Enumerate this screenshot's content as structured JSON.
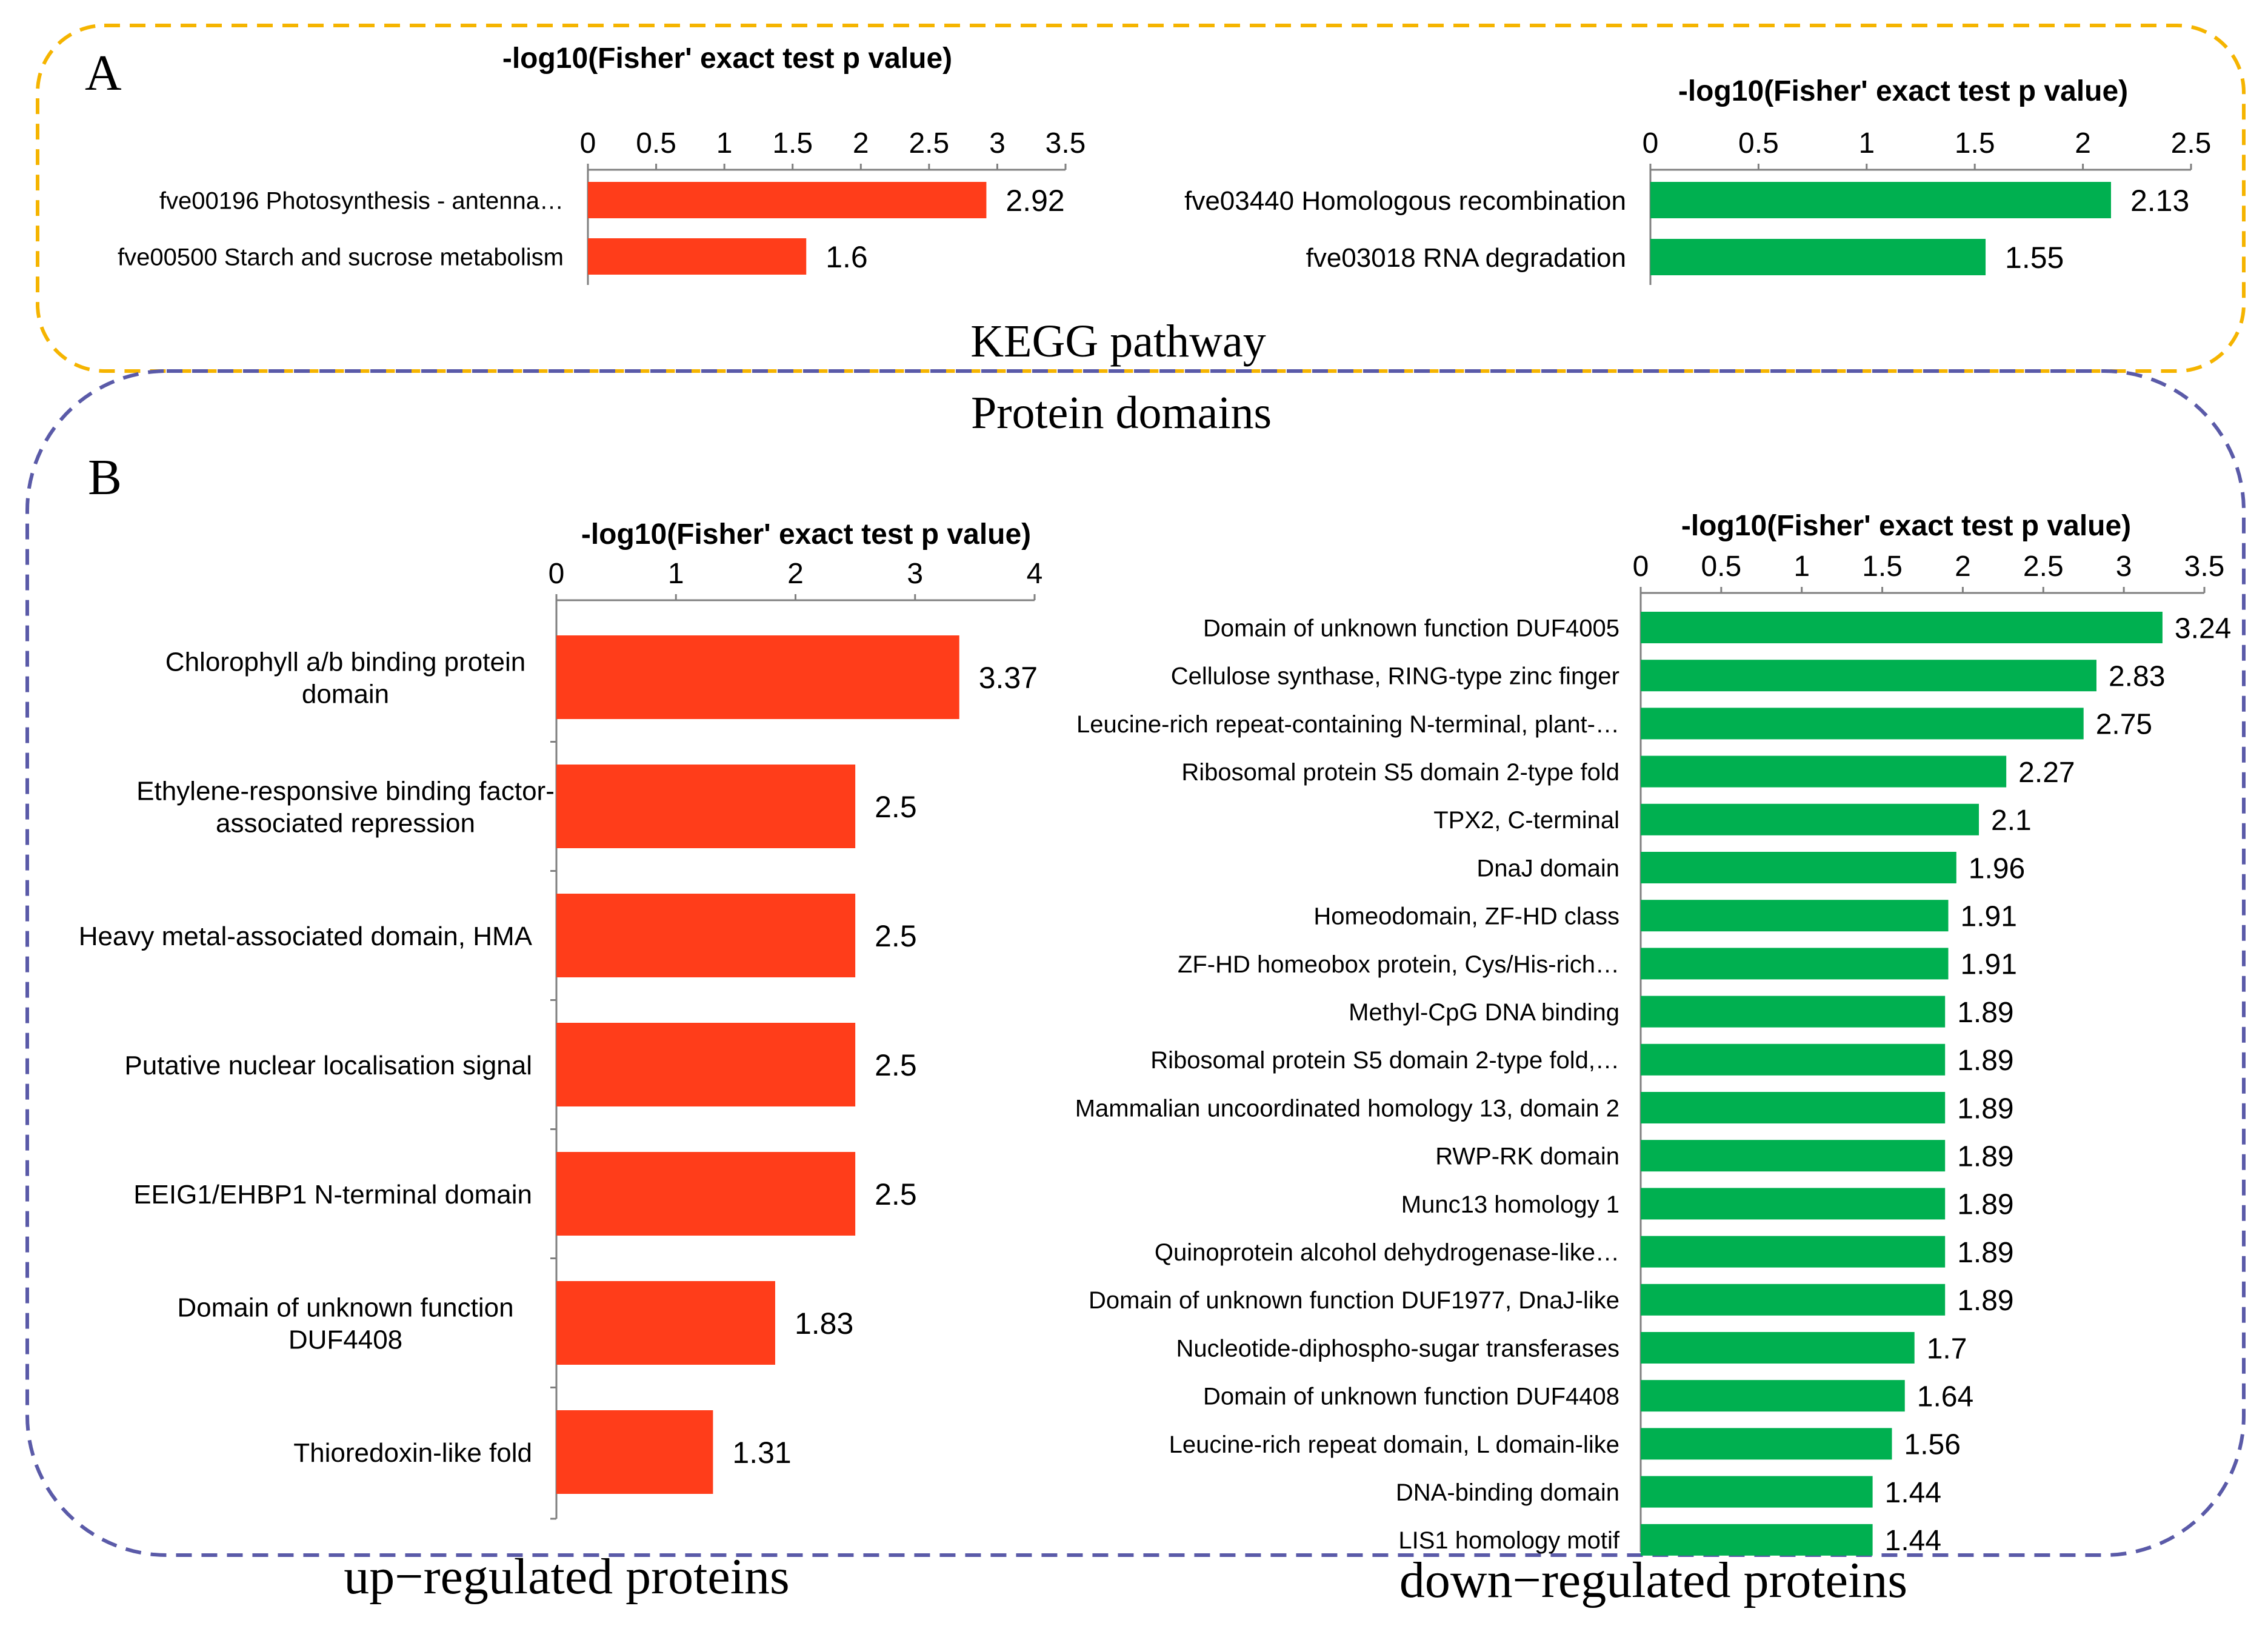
{
  "colors": {
    "up_bar": "#ff3d1a",
    "down_bar": "#00b050",
    "panel_a_border": "#f5b400",
    "panel_b_border": "#5a5aa8",
    "axis": "#7f7f7f",
    "text": "#000000"
  },
  "labels": {
    "panel_a": "A",
    "panel_b": "B",
    "kegg_title": "KEGG pathway",
    "domains_title": "Protein domains",
    "up_caption": "up−regulated proteins",
    "down_caption": "down−regulated proteins"
  },
  "chart_data": [
    {
      "id": "kegg_up",
      "type": "bar",
      "orientation": "horizontal",
      "title": "-log10(Fisher' exact test p value)",
      "categories": [
        "fve00196 Photosynthesis - antenna…",
        "fve00500 Starch and sucrose metabolism"
      ],
      "values": [
        2.92,
        1.6
      ],
      "value_labels": [
        "2.92",
        "1.6"
      ],
      "xlim": [
        0,
        3.5
      ],
      "ticks": [
        "0",
        "0.5",
        "1",
        "1.5",
        "2",
        "2.5",
        "3",
        "3.5"
      ],
      "color": "#ff3d1a"
    },
    {
      "id": "kegg_down",
      "type": "bar",
      "orientation": "horizontal",
      "title": "-log10(Fisher' exact test p value)",
      "categories": [
        "fve03440 Homologous recombination",
        "fve03018 RNA degradation"
      ],
      "values": [
        2.13,
        1.55
      ],
      "value_labels": [
        "2.13",
        "1.55"
      ],
      "xlim": [
        0,
        2.5
      ],
      "ticks": [
        "0",
        "0.5",
        "1",
        "1.5",
        "2",
        "2.5"
      ],
      "color": "#00b050"
    },
    {
      "id": "domain_up",
      "type": "bar",
      "orientation": "horizontal",
      "title": "-log10(Fisher' exact test p value)",
      "categories": [
        [
          "Chlorophyll a/b binding protein",
          "domain"
        ],
        [
          "Ethylene-responsive binding factor-",
          "associated repression"
        ],
        [
          "Heavy metal-associated domain, HMA"
        ],
        [
          "Putative nuclear localisation signal"
        ],
        [
          "EEIG1/EHBP1 N-terminal domain"
        ],
        [
          "Domain of unknown function",
          "DUF4408"
        ],
        [
          "Thioredoxin-like fold"
        ]
      ],
      "values": [
        3.37,
        2.5,
        2.5,
        2.5,
        2.5,
        1.83,
        1.31
      ],
      "value_labels": [
        "3.37",
        "2.5",
        "2.5",
        "2.5",
        "2.5",
        "1.83",
        "1.31"
      ],
      "xlim": [
        0,
        4
      ],
      "ticks": [
        "0",
        "1",
        "2",
        "3",
        "4"
      ],
      "color": "#ff3d1a"
    },
    {
      "id": "domain_down",
      "type": "bar",
      "orientation": "horizontal",
      "title": "-log10(Fisher' exact test p value)",
      "categories": [
        "Domain of unknown function DUF4005",
        "Cellulose synthase, RING-type zinc finger",
        "Leucine-rich repeat-containing N-terminal, plant-…",
        "Ribosomal protein S5 domain 2-type fold",
        "TPX2, C-terminal",
        "DnaJ domain",
        "Homeodomain, ZF-HD class",
        "ZF-HD homeobox protein, Cys/His-rich…",
        "Methyl-CpG DNA binding",
        "Ribosomal protein S5 domain 2-type fold,…",
        "Mammalian uncoordinated homology 13, domain 2",
        "RWP-RK domain",
        "Munc13 homology 1",
        "Quinoprotein alcohol dehydrogenase-like…",
        "Domain of unknown function DUF1977, DnaJ-like",
        "Nucleotide-diphospho-sugar transferases",
        "Domain of unknown function DUF4408",
        "Leucine-rich repeat domain, L domain-like",
        "DNA-binding domain",
        "LIS1 homology motif"
      ],
      "values": [
        3.24,
        2.83,
        2.75,
        2.27,
        2.1,
        1.96,
        1.91,
        1.91,
        1.89,
        1.89,
        1.89,
        1.89,
        1.89,
        1.89,
        1.89,
        1.7,
        1.64,
        1.56,
        1.44,
        1.44
      ],
      "value_labels": [
        "3.24",
        "2.83",
        "2.75",
        "2.27",
        "2.1",
        "1.96",
        "1.91",
        "1.91",
        "1.89",
        "1.89",
        "1.89",
        "1.89",
        "1.89",
        "1.89",
        "1.89",
        "1.7",
        "1.64",
        "1.56",
        "1.44",
        "1.44"
      ],
      "xlim": [
        0,
        3.5
      ],
      "ticks": [
        "0",
        "0.5",
        "1",
        "1.5",
        "2",
        "2.5",
        "3",
        "3.5"
      ],
      "color": "#00b050"
    }
  ]
}
